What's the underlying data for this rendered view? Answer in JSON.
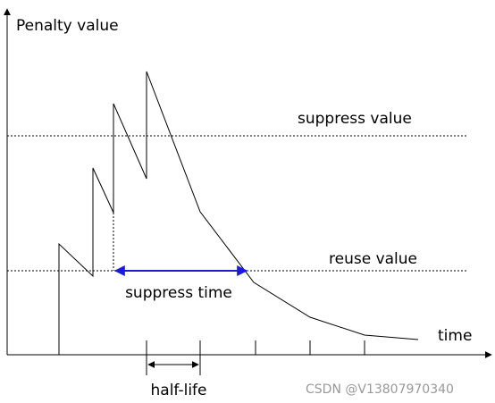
{
  "axis": {
    "y_label": "Penalty value",
    "x_label": "time"
  },
  "levels": {
    "suppress": "suppress value",
    "reuse": "reuse value"
  },
  "annotations": {
    "suppress_time": "suppress time",
    "half_life": "half-life"
  },
  "watermark": "CSDN @V13807970340"
}
